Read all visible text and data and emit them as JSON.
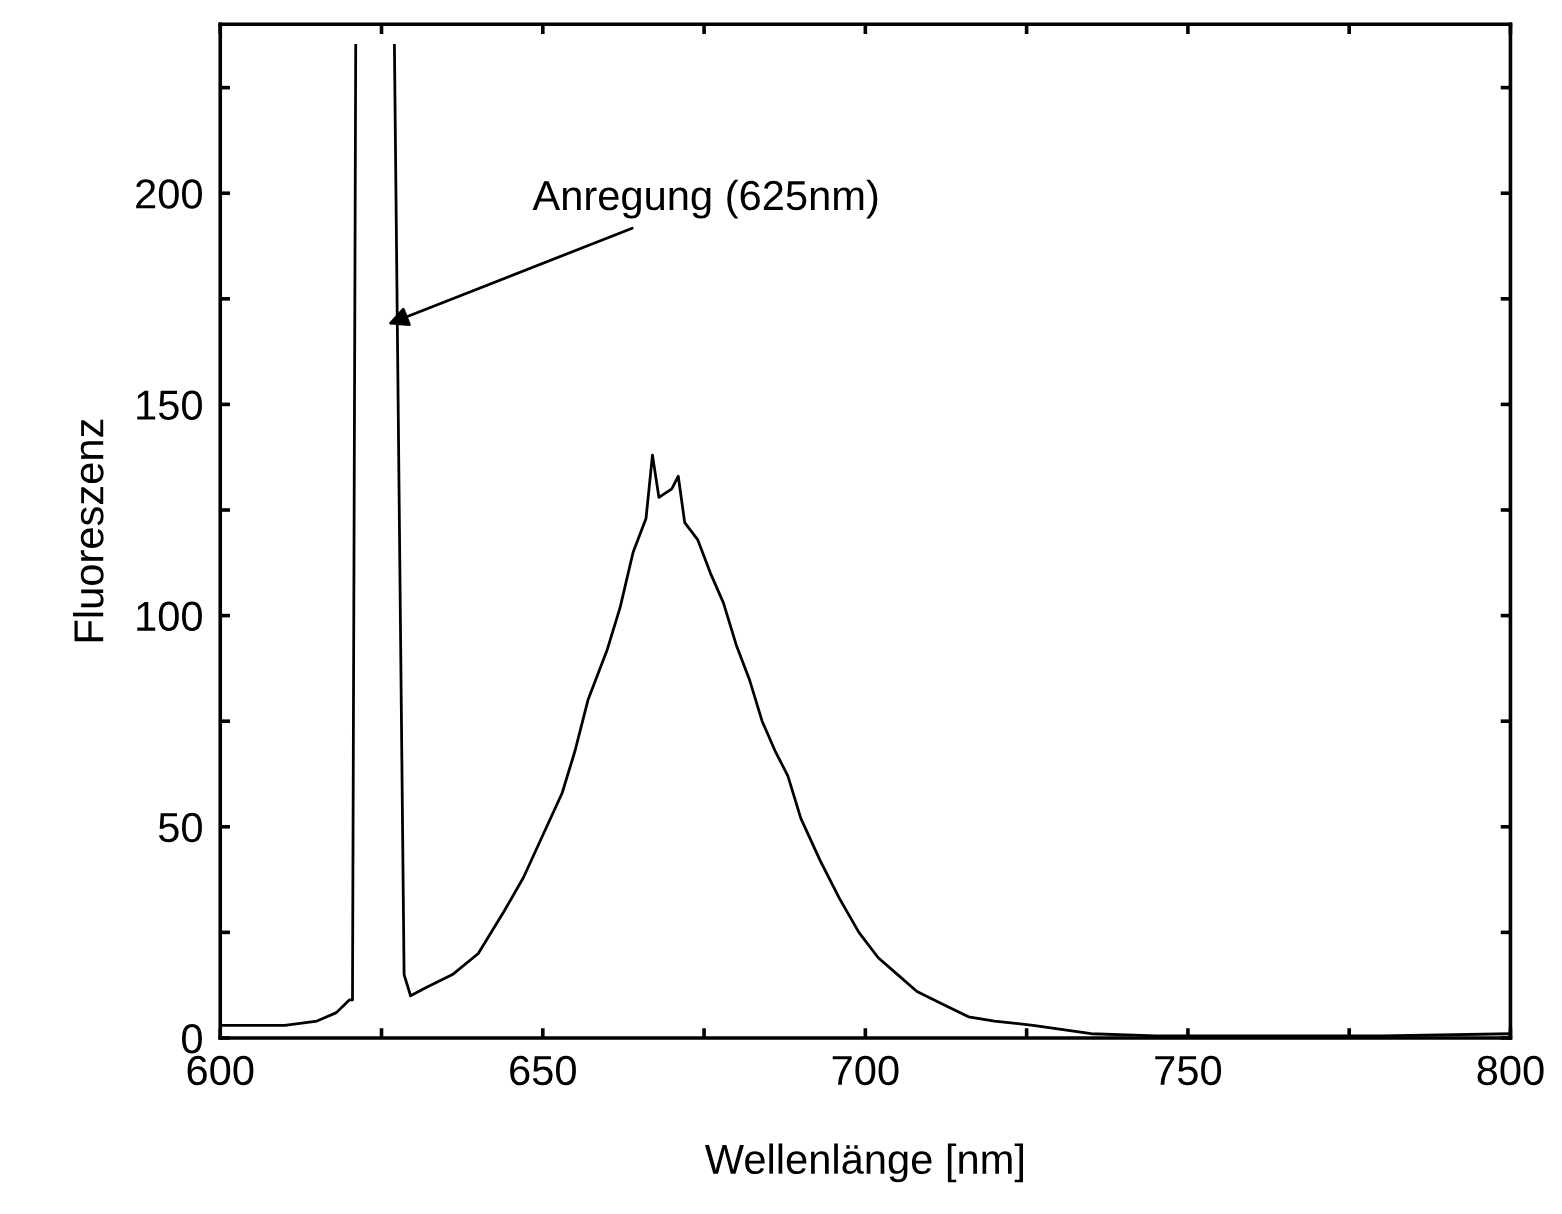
{
  "chart_data": {
    "type": "line",
    "xlabel": "Wellenlänge [nm]",
    "ylabel": "Fluoreszenz",
    "annotations": [
      {
        "text": "Anregung (625nm)",
        "x": 626,
        "y": 169
      }
    ],
    "x": [
      600,
      605,
      610,
      615,
      618,
      620,
      620.5,
      621,
      624,
      627,
      628.5,
      629.5,
      632,
      636,
      640,
      644,
      647,
      650,
      653,
      655,
      657,
      660,
      662,
      664,
      666,
      667,
      668,
      670,
      671,
      672,
      674,
      676,
      678,
      680,
      682,
      684,
      686,
      688,
      690,
      693,
      696,
      699,
      702,
      705,
      708,
      712,
      716,
      720,
      726,
      735,
      745,
      760,
      780,
      800
    ],
    "series": [
      {
        "color": "#000000",
        "values": [
          3,
          3,
          3,
          4,
          6,
          9,
          9,
          235,
          null,
          235,
          15,
          10,
          12,
          15,
          20,
          30,
          38,
          48,
          58,
          68,
          80,
          92,
          102,
          115,
          123,
          138,
          128,
          130,
          133,
          122,
          118,
          110,
          103,
          93,
          85,
          75,
          68,
          62,
          52,
          42,
          33,
          25,
          19,
          15,
          11,
          8,
          5,
          4,
          3,
          1,
          0.5,
          0.5,
          0.5,
          1
        ]
      }
    ],
    "xlim": [
      600,
      800
    ],
    "ylim": [
      0,
      240
    ],
    "xticks": [
      600,
      {
        "value": 625,
        "label": null
      },
      650,
      {
        "value": 675,
        "label": null
      },
      700,
      {
        "value": 725,
        "label": null
      },
      750,
      {
        "value": 775,
        "label": null
      },
      800
    ],
    "yticks": [
      0,
      {
        "value": 25,
        "label": null
      },
      50,
      {
        "value": 75,
        "label": null
      },
      100,
      {
        "value": 125,
        "label": null
      },
      150,
      {
        "value": 175,
        "label": null
      },
      200,
      {
        "value": 225,
        "label": null
      }
    ],
    "grid": false,
    "legend": false,
    "marker": "none",
    "line_style": "solid"
  }
}
